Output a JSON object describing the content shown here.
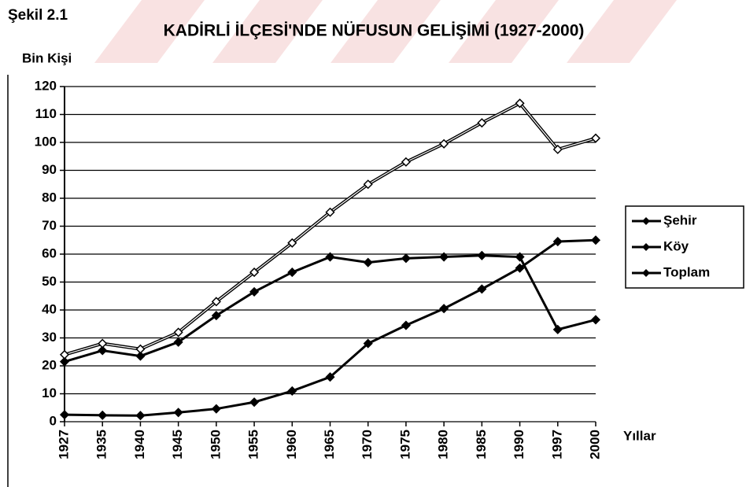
{
  "chart_data": {
    "type": "line",
    "figure_label": "Şekil 2.1",
    "title": "KADİRLİ İLÇESİ'NDE NÜFUSUN GELİŞİMİ (1927-2000)",
    "y_label": "Bin Kişi",
    "x_label": "Yıllar",
    "categories": [
      "1927",
      "1935",
      "1940",
      "1945",
      "1950",
      "1955",
      "1960",
      "1965",
      "1970",
      "1975",
      "1980",
      "1985",
      "1990",
      "1997",
      "2000"
    ],
    "series": [
      {
        "name": "Şehir",
        "color": "#000000",
        "values": [
          2.5,
          2.3,
          2.2,
          3.3,
          4.6,
          7,
          11,
          16,
          28,
          34.5,
          40.5,
          47.5,
          55,
          64.5,
          65
        ]
      },
      {
        "name": "Köy",
        "color": "#000000",
        "values": [
          21.5,
          25.5,
          23.5,
          28.5,
          38,
          46.5,
          53.5,
          59,
          57,
          58.5,
          59,
          59.5,
          59,
          33,
          36.5
        ]
      },
      {
        "name": "Toplam",
        "color": "#000000",
        "values": [
          24,
          28,
          26,
          32,
          43,
          53.5,
          64,
          75,
          85,
          93,
          99.5,
          107,
          114,
          97.5,
          101.5
        ]
      }
    ],
    "ylim": [
      0,
      120
    ],
    "yticks": [
      0,
      10,
      20,
      30,
      40,
      50,
      60,
      70,
      80,
      90,
      100,
      110,
      120
    ],
    "grid": true,
    "legend": "right"
  }
}
